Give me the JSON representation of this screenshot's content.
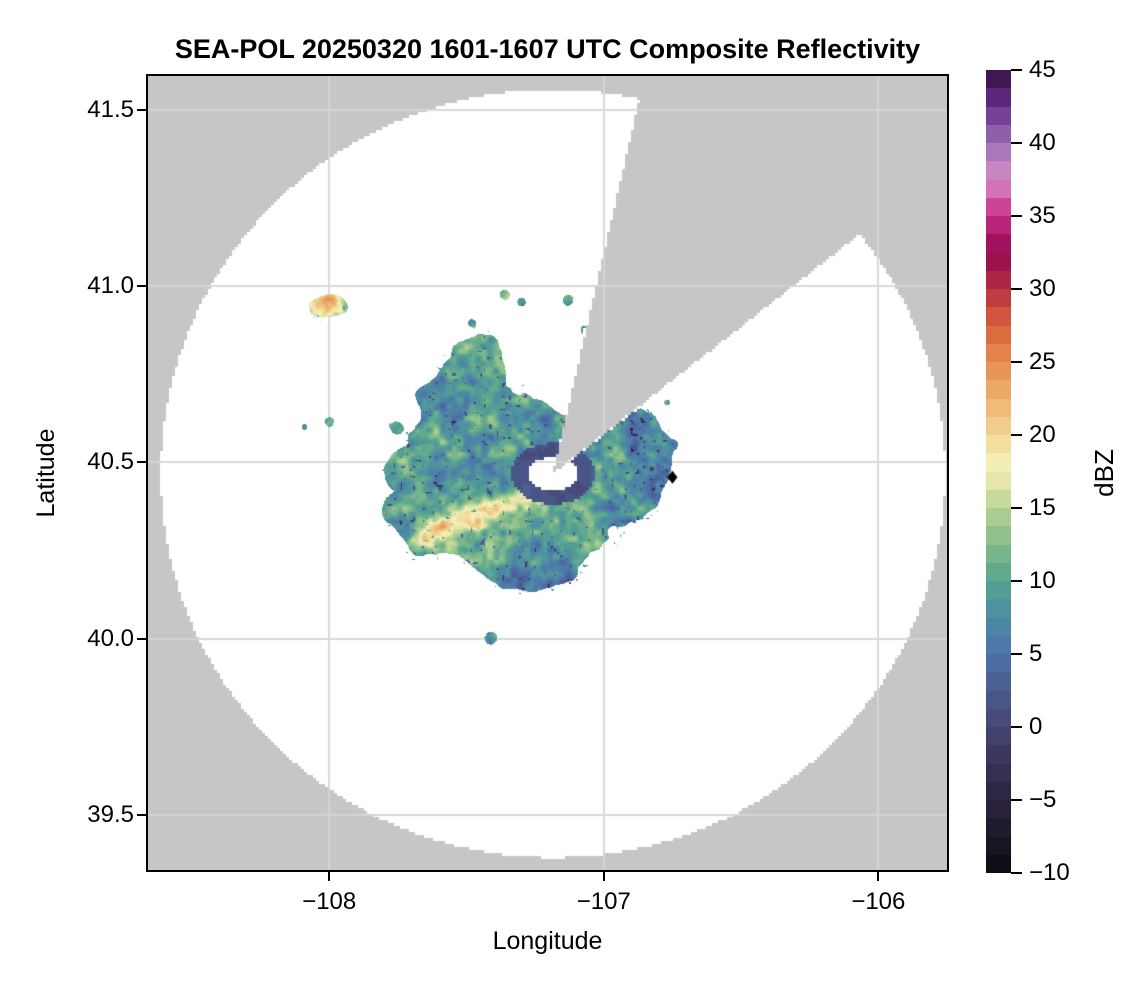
{
  "chart_data": {
    "type": "heatmap",
    "title": "SEA-POL 20250320 1601-1607 UTC Composite Reflectivity",
    "xlabel": "Longitude",
    "ylabel": "Latitude",
    "xlim": [
      -108.66,
      -105.75
    ],
    "ylim": [
      39.345,
      41.595
    ],
    "x_ticks": [
      -108,
      -107,
      -106
    ],
    "x_tick_labels": [
      "−108",
      "−107",
      "−106"
    ],
    "y_ticks": [
      39.5,
      40.0,
      40.5,
      41.0,
      41.5
    ],
    "y_tick_labels": [
      "39.5",
      "40.0",
      "40.5",
      "41.0",
      "41.5"
    ],
    "grid": true,
    "grid_color_on_white": "#d9d9d9",
    "grid_color_on_gray": "#d4d4d4",
    "background_outside_range": "#c6c6c6",
    "background_no_echo": "#ffffff",
    "colorbar": {
      "label": "dBZ",
      "vmin": -10,
      "vmax": 45,
      "segment_dbz": 1.25,
      "tick_values": [
        45,
        40,
        35,
        30,
        25,
        20,
        15,
        10,
        5,
        0,
        -5,
        -10
      ],
      "tick_labels": [
        "45",
        "40",
        "35",
        "30",
        "25",
        "20",
        "15",
        "10",
        "5",
        "0",
        "−5",
        "−10"
      ]
    },
    "colormap_anchors": [
      [
        -10,
        "#0c0b10"
      ],
      [
        -7.5,
        "#1d1826"
      ],
      [
        -5,
        "#2c2440"
      ],
      [
        -2.5,
        "#3a3359"
      ],
      [
        0,
        "#454672"
      ],
      [
        2.5,
        "#4b5a8e"
      ],
      [
        5,
        "#4d74a9"
      ],
      [
        7.5,
        "#4e8ba6"
      ],
      [
        10,
        "#57a38f"
      ],
      [
        12.5,
        "#83bb8b"
      ],
      [
        15,
        "#b7d494"
      ],
      [
        17,
        "#e9e8ae"
      ],
      [
        18,
        "#f4f0b5"
      ],
      [
        20,
        "#f2d795"
      ],
      [
        22.5,
        "#eeb26d"
      ],
      [
        25,
        "#e78d4f"
      ],
      [
        27.5,
        "#d9613c"
      ],
      [
        30,
        "#b92f44"
      ],
      [
        32.5,
        "#930a4f"
      ],
      [
        35,
        "#c72c89"
      ],
      [
        37.5,
        "#d78cc6"
      ],
      [
        40,
        "#9a70b6"
      ],
      [
        42.5,
        "#6b3090"
      ],
      [
        45,
        "#33103f"
      ]
    ],
    "radar": {
      "lon": -107.185,
      "lat": 40.468,
      "range_km": 121,
      "center_hole_km": 6.3,
      "blocked_sector_az_deg": [
        13,
        52
      ]
    },
    "echo_blobs": [
      {
        "lon": -107.38,
        "lat": 40.4,
        "rx": 0.295,
        "ry": 0.165,
        "dbz": 9,
        "taper": 0
      },
      {
        "lon": -107.56,
        "lat": 40.5,
        "rx": 0.165,
        "ry": 0.1,
        "dbz": 10,
        "taper": 0
      },
      {
        "lon": -107.52,
        "lat": 40.665,
        "rx": 0.135,
        "ry": 0.105,
        "dbz": 9,
        "taper": 0
      },
      {
        "lon": -107.46,
        "lat": 40.79,
        "rx": 0.105,
        "ry": 0.072,
        "dbz": 12,
        "taper": 0
      },
      {
        "lon": -107.22,
        "lat": 40.55,
        "rx": 0.15,
        "ry": 0.115,
        "dbz": 7,
        "taper": 0
      },
      {
        "lon": -107.0,
        "lat": 40.55,
        "rx": 0.115,
        "ry": 0.085,
        "dbz": 8,
        "taper": 0
      },
      {
        "lon": -106.88,
        "lat": 40.605,
        "rx": 0.075,
        "ry": 0.055,
        "dbz": 8,
        "taper": 0
      },
      {
        "lon": -107.09,
        "lat": 40.44,
        "rx": 0.125,
        "ry": 0.09,
        "dbz": 9,
        "taper": 0
      },
      {
        "lon": -106.88,
        "lat": 40.44,
        "rx": 0.125,
        "ry": 0.105,
        "dbz": 6,
        "taper": 0
      },
      {
        "lon": -106.82,
        "lat": 40.52,
        "rx": 0.065,
        "ry": 0.055,
        "dbz": 6,
        "taper": 0
      },
      {
        "lon": -107.3,
        "lat": 40.215,
        "rx": 0.165,
        "ry": 0.085,
        "dbz": 8,
        "taper": 0
      },
      {
        "lon": -107.62,
        "lat": 40.33,
        "rx": 0.105,
        "ry": 0.07,
        "dbz": 12,
        "taper": 0
      },
      {
        "lon": -107.74,
        "lat": 40.475,
        "rx": 0.06,
        "ry": 0.04,
        "dbz": 10,
        "taper": 0
      },
      {
        "lon": -107.76,
        "lat": 40.36,
        "rx": 0.05,
        "ry": 0.04,
        "dbz": 9,
        "taper": 0
      },
      {
        "lon": -107.44,
        "lat": 40.54,
        "rx": 0.12,
        "ry": 0.105,
        "dbz": 8,
        "taper": 0
      },
      {
        "lon": -107.11,
        "lat": 40.34,
        "rx": 0.085,
        "ry": 0.09,
        "dbz": 12,
        "taper": 0
      },
      {
        "lon": -108.005,
        "lat": 40.945,
        "rx": 0.075,
        "ry": 0.042,
        "dbz": 17,
        "taper": 6
      }
    ],
    "specks": [
      {
        "lon": -108.0,
        "lat": 40.615,
        "r": 0.02,
        "dbz": 9
      },
      {
        "lon": -107.755,
        "lat": 40.6,
        "r": 0.018,
        "dbz": 9
      },
      {
        "lon": -107.36,
        "lat": 40.975,
        "r": 0.02,
        "dbz": 11
      },
      {
        "lon": -107.3,
        "lat": 40.955,
        "r": 0.015,
        "dbz": 9
      },
      {
        "lon": -107.13,
        "lat": 40.96,
        "r": 0.018,
        "dbz": 10
      },
      {
        "lon": -107.07,
        "lat": 40.875,
        "r": 0.016,
        "dbz": 9
      },
      {
        "lon": -107.025,
        "lat": 40.845,
        "r": 0.013,
        "dbz": 8
      },
      {
        "lon": -107.41,
        "lat": 40.0,
        "r": 0.026,
        "dbz": 11
      },
      {
        "lon": -106.77,
        "lat": 40.67,
        "r": 0.012,
        "dbz": 6
      },
      {
        "lon": -106.745,
        "lat": 40.55,
        "r": 0.012,
        "dbz": 5
      },
      {
        "lon": -107.48,
        "lat": 40.895,
        "r": 0.014,
        "dbz": 9
      },
      {
        "lon": -108.09,
        "lat": 40.6,
        "r": 0.01,
        "dbz": 8
      }
    ],
    "ridge": {
      "from_lonlat": [
        -107.64,
        40.295
      ],
      "to_lonlat": [
        -107.29,
        40.395
      ],
      "half_width_km": 4.2,
      "boost_dbz": 8
    },
    "site_marker": {
      "lon": -106.75,
      "lat": 40.458,
      "shape": "diamond",
      "color": "#000000"
    }
  }
}
